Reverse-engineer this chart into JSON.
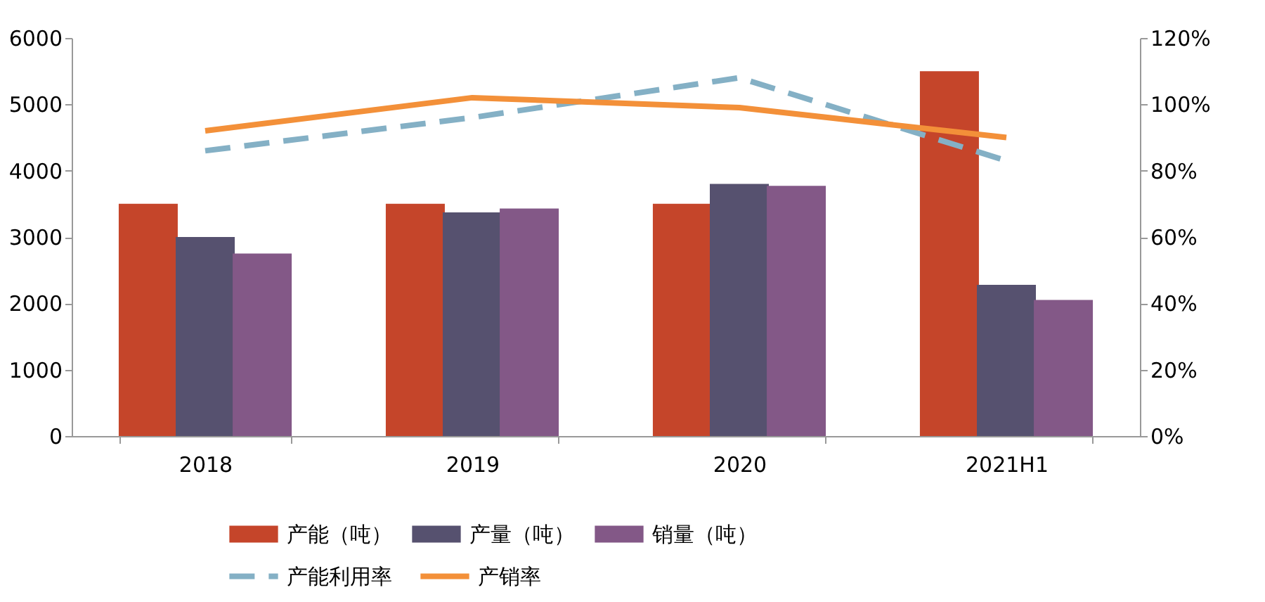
{
  "chart_data": {
    "type": "bar",
    "categories": [
      "2018",
      "2019",
      "2020",
      "2021H1"
    ],
    "series": [
      {
        "name": "产能（吨）",
        "color": "#c5452a",
        "values": [
          3500,
          3500,
          3500,
          5500
        ]
      },
      {
        "name": "产量（吨）",
        "color": "#56516f",
        "values": [
          3000,
          3370,
          3800,
          2280
        ]
      },
      {
        "name": "销量（吨）",
        "color": "#835887",
        "values": [
          2750,
          3430,
          3770,
          2050
        ]
      },
      {
        "name": "产能利用率",
        "type": "line",
        "axis": "y2",
        "line_style": "dashed",
        "color": "#84b0c5",
        "values": [
          86,
          96,
          108,
          83
        ]
      },
      {
        "name": "产销率",
        "type": "line",
        "axis": "y2",
        "line_style": "solid",
        "color": "#f39039",
        "values": [
          92,
          102,
          99,
          90
        ]
      }
    ],
    "ylim": [
      0,
      6000
    ],
    "yticks": [
      0,
      1000,
      2000,
      3000,
      4000,
      5000,
      6000
    ],
    "y2lim": [
      0,
      120
    ],
    "y2ticks": [
      {
        "value": 0,
        "label": "0%"
      },
      {
        "value": 20,
        "label": "20%"
      },
      {
        "value": 40,
        "label": "40%"
      },
      {
        "value": 60,
        "label": "60%"
      },
      {
        "value": 80,
        "label": "80%"
      },
      {
        "value": 100,
        "label": "100%"
      },
      {
        "value": 120,
        "label": "120%"
      }
    ],
    "legend": "bottom",
    "grid": false
  }
}
